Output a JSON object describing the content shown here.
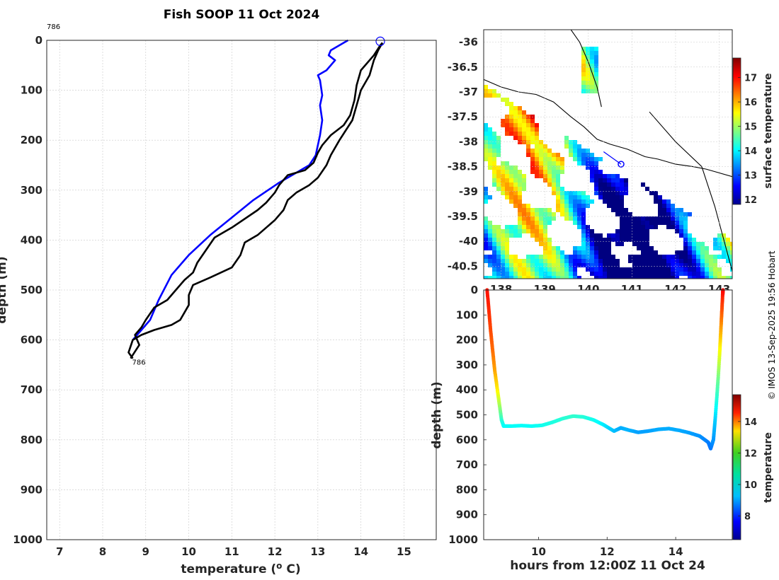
{
  "title": "Fish SOOP 11 Oct 2024",
  "credit": "© IMOS 13-Sep-2025 19:56 Hobart",
  "colors": {
    "blue_profile": "#0000ff",
    "black_profile": "#000000",
    "grid": "#c8c8c8",
    "ship_marker": "#0000ff"
  },
  "chart_data": [
    {
      "id": "profile",
      "type": "line",
      "xlabel": "temperature (",
      "xlabel_sup": "o",
      "xlabel_unit": " C)",
      "ylabel": "depth (m)",
      "xlim": [
        6.7,
        15.75
      ],
      "ylim": [
        1000,
        0
      ],
      "xticks": [
        7,
        8,
        9,
        10,
        11,
        12,
        13,
        14,
        15
      ],
      "yticks": [
        0,
        100,
        200,
        300,
        400,
        500,
        600,
        700,
        800,
        900,
        1000
      ],
      "annotations": [
        {
          "text": "786",
          "x": 6.7,
          "y": -20
        },
        {
          "text": "786",
          "x": 8.65,
          "y": 635
        }
      ],
      "series": [
        {
          "name": "blue",
          "color": "#0000ff",
          "points": [
            [
              13.7,
              0
            ],
            [
              13.6,
              5
            ],
            [
              13.3,
              20
            ],
            [
              13.25,
              30
            ],
            [
              13.4,
              40
            ],
            [
              13.2,
              60
            ],
            [
              13.0,
              70
            ],
            [
              13.05,
              80
            ],
            [
              13.1,
              110
            ],
            [
              13.05,
              130
            ],
            [
              13.1,
              160
            ],
            [
              13.05,
              190
            ],
            [
              12.95,
              230
            ],
            [
              12.8,
              250
            ],
            [
              12.5,
              265
            ],
            [
              12.1,
              285
            ],
            [
              11.5,
              320
            ],
            [
              11.0,
              355
            ],
            [
              10.5,
              390
            ],
            [
              10.0,
              430
            ],
            [
              9.6,
              470
            ],
            [
              9.3,
              520
            ],
            [
              9.1,
              560
            ],
            [
              8.9,
              580
            ],
            [
              8.7,
              600
            ]
          ]
        },
        {
          "name": "black-1",
          "color": "#000000",
          "points": [
            [
              14.5,
              5
            ],
            [
              14.45,
              10
            ],
            [
              14.3,
              30
            ],
            [
              14.0,
              60
            ],
            [
              13.9,
              90
            ],
            [
              13.85,
              120
            ],
            [
              13.75,
              150
            ],
            [
              13.6,
              170
            ],
            [
              13.3,
              190
            ],
            [
              13.1,
              210
            ],
            [
              13.0,
              225
            ],
            [
              12.9,
              245
            ],
            [
              12.7,
              260
            ],
            [
              12.3,
              270
            ],
            [
              12.1,
              290
            ],
            [
              12.0,
              305
            ],
            [
              11.8,
              325
            ],
            [
              11.6,
              340
            ],
            [
              11.0,
              375
            ],
            [
              10.8,
              385
            ],
            [
              10.6,
              395
            ],
            [
              10.4,
              420
            ],
            [
              10.2,
              445
            ],
            [
              10.1,
              465
            ],
            [
              9.9,
              480
            ],
            [
              9.7,
              500
            ],
            [
              9.5,
              520
            ],
            [
              9.2,
              535
            ],
            [
              9.0,
              560
            ],
            [
              8.9,
              575
            ],
            [
              8.75,
              590
            ],
            [
              8.85,
              610
            ],
            [
              8.7,
              630
            ],
            [
              8.65,
              637
            ]
          ]
        },
        {
          "name": "black-2",
          "color": "#000000",
          "points": [
            [
              14.5,
              5
            ],
            [
              14.4,
              20
            ],
            [
              14.3,
              40
            ],
            [
              14.2,
              70
            ],
            [
              14.0,
              100
            ],
            [
              13.9,
              130
            ],
            [
              13.8,
              160
            ],
            [
              13.5,
              200
            ],
            [
              13.3,
              230
            ],
            [
              13.2,
              250
            ],
            [
              13.0,
              275
            ],
            [
              12.8,
              290
            ],
            [
              12.5,
              305
            ],
            [
              12.3,
              320
            ],
            [
              12.2,
              340
            ],
            [
              12.0,
              360
            ],
            [
              11.8,
              375
            ],
            [
              11.6,
              390
            ],
            [
              11.3,
              405
            ],
            [
              11.2,
              430
            ],
            [
              11.0,
              455
            ],
            [
              10.5,
              475
            ],
            [
              10.1,
              490
            ],
            [
              10.0,
              510
            ],
            [
              10.0,
              530
            ],
            [
              9.9,
              545
            ],
            [
              9.8,
              560
            ],
            [
              9.6,
              570
            ],
            [
              9.2,
              580
            ],
            [
              8.9,
              590
            ],
            [
              8.7,
              600
            ],
            [
              8.6,
              625
            ],
            [
              8.7,
              637
            ]
          ]
        }
      ],
      "start_marker": {
        "x": 14.45,
        "y": 2
      }
    },
    {
      "id": "sst_map",
      "type": "heatmap",
      "xlim": [
        137.6,
        143.3
      ],
      "ylim": [
        -40.75,
        -35.75
      ],
      "xticks": [
        138,
        139,
        140,
        141,
        142,
        143
      ],
      "yticks": [
        -36,
        -36.5,
        -37,
        -37.5,
        -38,
        -38.5,
        -39,
        -39.5,
        -40,
        -40.5
      ],
      "ytick_labels": [
        "-36",
        "-36.5",
        "-37",
        "-37.5",
        "-38",
        "-38.5",
        "-39",
        "-39.5",
        "-40",
        "-40.5"
      ],
      "ship_position": {
        "lon": 140.75,
        "lat": -38.45
      },
      "ship_track": [
        [
          140.35,
          -38.2
        ],
        [
          140.75,
          -38.45
        ]
      ],
      "colorbar": {
        "label": "surface temperature",
        "range": [
          11.8,
          17.8
        ],
        "ticks": [
          12,
          13,
          14,
          15,
          16,
          17
        ]
      }
    },
    {
      "id": "depth_time",
      "type": "scatter",
      "xlabel": "hours from 12:00Z 11 Oct 24",
      "ylabel": "depth (m)",
      "xlim": [
        8.4,
        15.65
      ],
      "ylim": [
        1000,
        0
      ],
      "xticks": [
        10,
        12,
        14
      ],
      "yticks": [
        0,
        100,
        200,
        300,
        400,
        500,
        600,
        700,
        800,
        900,
        1000
      ],
      "colorbar": {
        "label": "temperature",
        "range": [
          6.5,
          15.7
        ],
        "ticks": [
          8,
          10,
          12,
          14
        ]
      },
      "trajectory": [
        [
          8.5,
          0,
          14.4
        ],
        [
          8.55,
          80,
          14.2
        ],
        [
          8.6,
          160,
          13.9
        ],
        [
          8.66,
          240,
          13.6
        ],
        [
          8.72,
          320,
          13.1
        ],
        [
          8.8,
          400,
          12.4
        ],
        [
          8.86,
          460,
          11.5
        ],
        [
          8.92,
          520,
          10.4
        ],
        [
          8.98,
          545,
          10.0
        ],
        [
          9.2,
          545,
          10.0
        ],
        [
          9.5,
          543,
          10.0
        ],
        [
          9.8,
          545,
          10.0
        ],
        [
          10.1,
          542,
          10.1
        ],
        [
          10.4,
          530,
          10.2
        ],
        [
          10.7,
          515,
          10.3
        ],
        [
          11.0,
          505,
          10.4
        ],
        [
          11.3,
          508,
          10.3
        ],
        [
          11.6,
          520,
          10.1
        ],
        [
          11.9,
          540,
          9.8
        ],
        [
          12.2,
          565,
          9.4
        ],
        [
          12.4,
          552,
          9.2
        ],
        [
          12.6,
          560,
          9.3
        ],
        [
          12.9,
          570,
          9.1
        ],
        [
          13.2,
          565,
          9.1
        ],
        [
          13.5,
          558,
          9.2
        ],
        [
          13.8,
          555,
          9.2
        ],
        [
          14.1,
          562,
          9.2
        ],
        [
          14.4,
          572,
          9.1
        ],
        [
          14.7,
          585,
          9.0
        ],
        [
          14.95,
          610,
          8.8
        ],
        [
          15.02,
          635,
          8.7
        ],
        [
          15.1,
          600,
          9.0
        ],
        [
          15.15,
          520,
          9.5
        ],
        [
          15.2,
          430,
          10.3
        ],
        [
          15.24,
          350,
          11.0
        ],
        [
          15.28,
          260,
          12.0
        ],
        [
          15.31,
          180,
          12.8
        ],
        [
          15.34,
          100,
          13.6
        ],
        [
          15.37,
          20,
          14.3
        ],
        [
          15.38,
          0,
          14.5
        ]
      ]
    }
  ]
}
